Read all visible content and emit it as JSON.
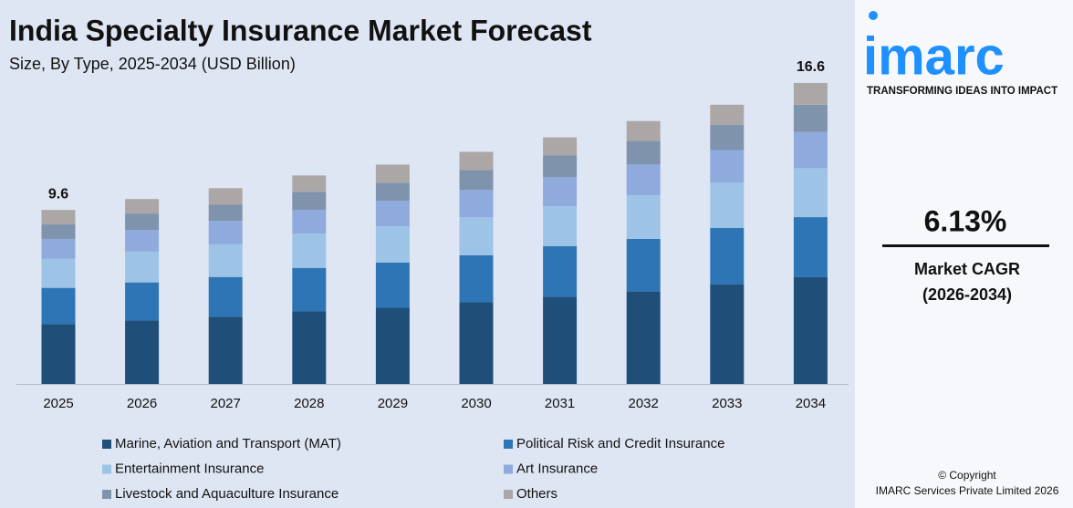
{
  "chart_data": {
    "type": "stacked_bar",
    "title": "India Specialty Insurance Market Forecast",
    "subtitle": "Size, By Type, 2025-2034 (USD Billion)",
    "categories": [
      "2025",
      "2026",
      "2027",
      "2028",
      "2029",
      "2030",
      "2031",
      "2032",
      "2033",
      "2034"
    ],
    "series": [
      {
        "name": "Marine, Aviation and Transport (MAT)",
        "color": "#1f4e79",
        "values": [
          3.3,
          3.5,
          3.7,
          4.0,
          4.2,
          4.5,
          4.8,
          5.1,
          5.5,
          5.9
        ]
      },
      {
        "name": "Political Risk and Credit Insurance",
        "color": "#2e75b6",
        "values": [
          2.0,
          2.1,
          2.2,
          2.4,
          2.5,
          2.6,
          2.8,
          2.9,
          3.1,
          3.3
        ]
      },
      {
        "name": "Entertainment Insurance",
        "color": "#9dc3e6",
        "values": [
          1.6,
          1.7,
          1.8,
          1.9,
          2.0,
          2.1,
          2.2,
          2.4,
          2.5,
          2.7
        ]
      },
      {
        "name": "Art Insurance",
        "color": "#8faadc",
        "values": [
          1.1,
          1.2,
          1.3,
          1.3,
          1.4,
          1.5,
          1.6,
          1.7,
          1.8,
          2.0
        ]
      },
      {
        "name": "Livestock and Aquaculture Insurance",
        "color": "#7f93ad",
        "values": [
          0.8,
          0.9,
          0.9,
          1.0,
          1.0,
          1.1,
          1.2,
          1.3,
          1.4,
          1.5
        ]
      },
      {
        "name": "Others",
        "color": "#aca7a7",
        "values": [
          0.8,
          0.8,
          0.9,
          0.9,
          1.0,
          1.0,
          1.0,
          1.1,
          1.1,
          1.2
        ]
      }
    ],
    "totals": [
      9.6,
      null,
      null,
      null,
      null,
      null,
      null,
      null,
      null,
      16.6
    ],
    "ylim": [
      0,
      17
    ]
  },
  "sidebar": {
    "logo": "imarc",
    "tagline": "TRANSFORMING IDEAS INTO IMPACT",
    "cagr": "6.13%",
    "cagr_label": "Market CAGR",
    "cagr_period": "(2026-2034)",
    "copyright": "© Copyright",
    "company": "IMARC Services Private Limited 2026"
  }
}
